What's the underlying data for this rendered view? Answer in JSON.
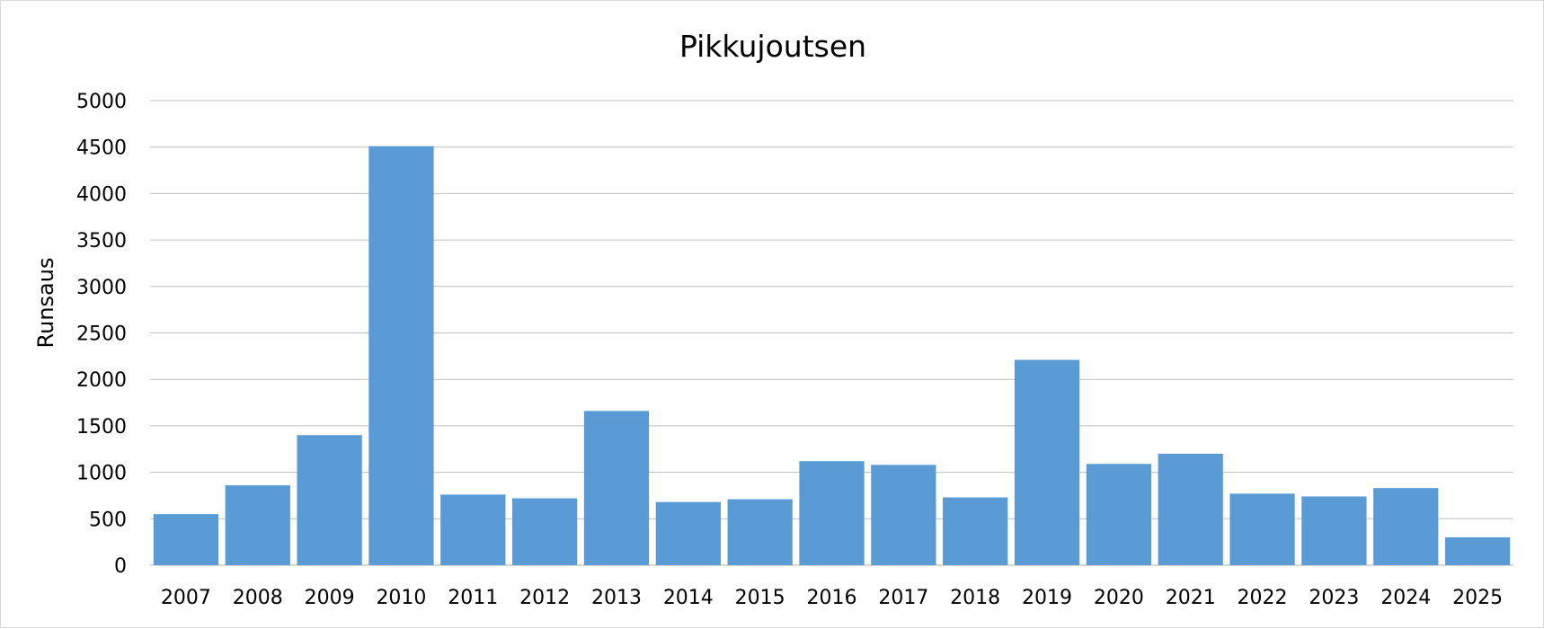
{
  "chart_data": {
    "type": "bar",
    "title": "Pikkujoutsen",
    "xlabel": "",
    "ylabel": "Runsaus",
    "ylim": [
      0,
      5000
    ],
    "yticks": [
      0,
      500,
      1000,
      1500,
      2000,
      2500,
      3000,
      3500,
      4000,
      4500,
      5000
    ],
    "categories": [
      "2007",
      "2008",
      "2009",
      "2010",
      "2011",
      "2012",
      "2013",
      "2014",
      "2015",
      "2016",
      "2017",
      "2018",
      "2019",
      "2020",
      "2021",
      "2022",
      "2023",
      "2024",
      "2025"
    ],
    "values": [
      550,
      860,
      1400,
      4510,
      760,
      720,
      1660,
      680,
      710,
      1120,
      1080,
      730,
      2210,
      1090,
      1200,
      770,
      740,
      830,
      300
    ],
    "bar_color": "#5b9bd5",
    "grid": true,
    "legend": "none"
  }
}
